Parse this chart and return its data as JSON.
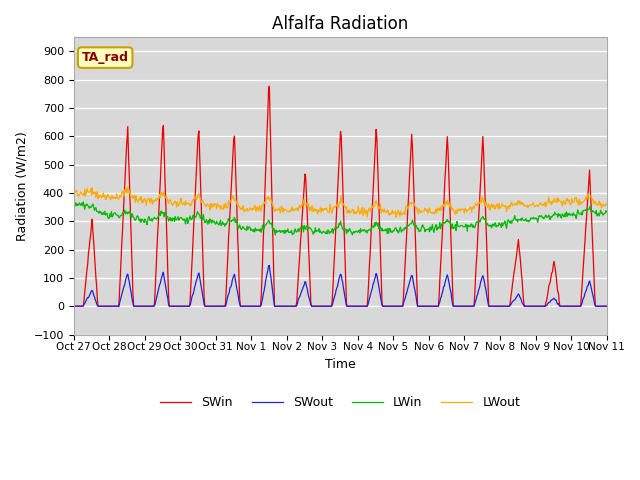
{
  "title": "Alfalfa Radiation",
  "ylabel": "Radiation (W/m2)",
  "xlabel": "Time",
  "ylim": [
    -100,
    950
  ],
  "annotation_text": "TA_rad",
  "annotation_color": "#8b0000",
  "annotation_bg": "#ffffc0",
  "annotation_border": "#c8a000",
  "plot_bg": "#d8d8d8",
  "xtick_labels": [
    "Oct 27",
    "Oct 28",
    "Oct 29",
    "Oct 30",
    "Oct 31",
    "Nov 1",
    "Nov 2",
    "Nov 3",
    "Nov 4",
    "Nov 5",
    "Nov 6",
    "Nov 7",
    "Nov 8",
    "Nov 9",
    "Nov 10",
    "Nov 11"
  ],
  "legend_labels": [
    "SWin",
    "SWout",
    "LWin",
    "LWout"
  ],
  "line_colors": [
    "#ee0000",
    "#2222dd",
    "#00bb00",
    "#ffaa00"
  ],
  "n_days": 15,
  "seed": 42,
  "pts_per_day": 48
}
